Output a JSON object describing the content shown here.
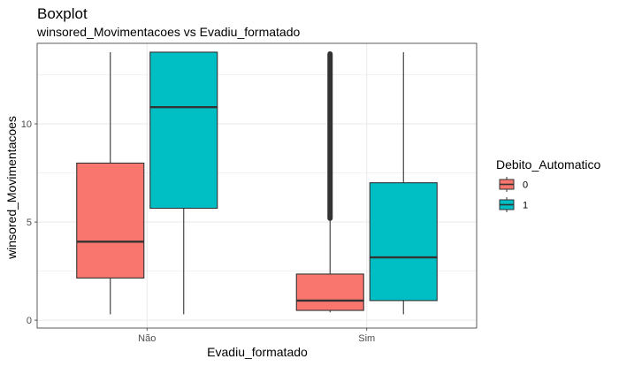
{
  "chart_data": {
    "type": "boxplot",
    "title": "Boxplot",
    "subtitle": "winsored_Movimentacoes vs Evadiu_formatado",
    "xlabel": "Evadiu_formatado",
    "ylabel": "winsored_Movimentacoes",
    "categories": [
      "Não",
      "Sim"
    ],
    "ylim": [
      -0.4,
      14.1
    ],
    "yticks": [
      0,
      5,
      10
    ],
    "grid": true,
    "legend": {
      "title": "Debito_Automatico",
      "position": "right",
      "entries": [
        {
          "label": "0",
          "color": "#F8766D"
        },
        {
          "label": "1",
          "color": "#00BFC4"
        }
      ]
    },
    "series": [
      {
        "name": "0",
        "color": "#F8766D",
        "boxes": [
          {
            "category": "Não",
            "min": 0.3,
            "q1": 2.15,
            "median": 4.0,
            "q3": 8.0,
            "max": 13.65,
            "outliers": []
          },
          {
            "category": "Sim",
            "min": 0.4,
            "q1": 0.5,
            "median": 1.0,
            "q3": 2.35,
            "max": 5.1,
            "outliers": "dense 5.1–13.65"
          }
        ]
      },
      {
        "name": "1",
        "color": "#00BFC4",
        "boxes": [
          {
            "category": "Não",
            "min": 0.3,
            "q1": 5.7,
            "median": 10.85,
            "q3": 13.65,
            "max": 13.65,
            "outliers": []
          },
          {
            "category": "Sim",
            "min": 0.3,
            "q1": 1.0,
            "median": 3.2,
            "q3": 7.0,
            "max": 13.65,
            "outliers": []
          }
        ]
      }
    ]
  }
}
